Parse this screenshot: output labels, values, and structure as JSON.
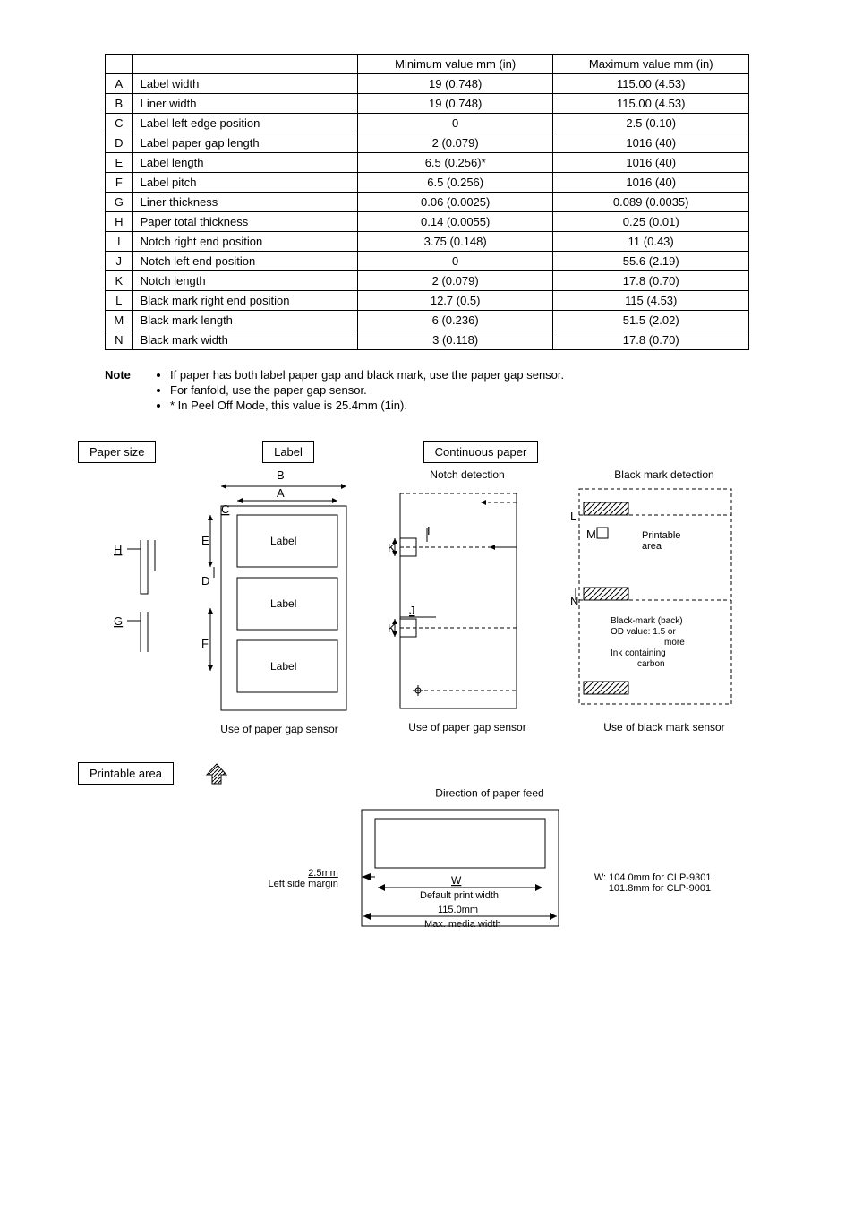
{
  "table": {
    "headers": [
      "",
      "",
      "Minimum value mm (in)",
      "Maximum value mm (in)"
    ],
    "rows": [
      {
        "letter": "A",
        "name": "Label width",
        "min": "19 (0.748)",
        "max": "115.00 (4.53)"
      },
      {
        "letter": "B",
        "name": "Liner width",
        "min": "19 (0.748)",
        "max": "115.00 (4.53)"
      },
      {
        "letter": "C",
        "name": "Label left edge position",
        "min": "0",
        "max": "2.5 (0.10)"
      },
      {
        "letter": "D",
        "name": "Label paper gap length",
        "min": "2 (0.079)",
        "max": "1016 (40)"
      },
      {
        "letter": "E",
        "name": "Label length",
        "min": "6.5 (0.256)*",
        "max": "1016 (40)"
      },
      {
        "letter": "F",
        "name": "Label pitch",
        "min": "6.5 (0.256)",
        "max": "1016 (40)"
      },
      {
        "letter": "G",
        "name": "Liner thickness",
        "min": "0.06 (0.0025)",
        "max": "0.089 (0.0035)"
      },
      {
        "letter": "H",
        "name": "Paper total thickness",
        "min": "0.14 (0.0055)",
        "max": "0.25 (0.01)"
      },
      {
        "letter": "I",
        "name": "Notch right end position",
        "min": "3.75 (0.148)",
        "max": "11 (0.43)"
      },
      {
        "letter": "J",
        "name": "Notch left end position",
        "min": "0",
        "max": "55.6 (2.19)"
      },
      {
        "letter": "K",
        "name": "Notch length",
        "min": "2 (0.079)",
        "max": "17.8 (0.70)"
      },
      {
        "letter": "L",
        "name": "Black mark right end position",
        "min": "12.7 (0.5)",
        "max": "115 (4.53)"
      },
      {
        "letter": "M",
        "name": "Black mark length",
        "min": "6 (0.236)",
        "max": "51.5 (2.02)"
      },
      {
        "letter": "N",
        "name": "Black mark width",
        "min": "3 (0.118)",
        "max": "17.8 (0.70)"
      }
    ]
  },
  "note": {
    "label": "Note",
    "items": [
      "If paper has both label paper gap and black mark, use the paper gap sensor.",
      "For fanfold, use the paper gap sensor.",
      "* In Peel Off Mode, this value is 25.4mm (1in)."
    ]
  },
  "boxes": {
    "paper_size": "Paper size",
    "label": "Label",
    "continuous": "Continuous paper",
    "printable": "Printable area"
  },
  "diag1": {
    "label_text": "Label",
    "letters": {
      "A": "A",
      "B": "B",
      "C": "C",
      "D": "D",
      "E": "E",
      "F": "F",
      "G": "G",
      "H": "H"
    },
    "caption": "Use of paper gap sensor"
  },
  "diag2": {
    "title": "Notch detection",
    "letters": {
      "I": "I",
      "J": "J",
      "K": "K"
    },
    "caption": "Use of paper gap sensor"
  },
  "diag3": {
    "title": "Black mark detection",
    "printable": "Printable area",
    "blackmark": "Black-mark (back) OD value: 1.5 or more Ink containing carbon",
    "letters": {
      "L": "L",
      "M": "M",
      "N": "N"
    },
    "caption": "Use of black mark sensor"
  },
  "feed": {
    "direction": "Direction of paper feed"
  },
  "printable_diag": {
    "margin_val": "2.5mm",
    "margin_label": "Left side margin",
    "W": "W",
    "default_width": "Default print width",
    "max_width_val": "115.0mm",
    "max_width_label": "Max. media width",
    "w_note1": "W: 104.0mm for CLP-9301",
    "w_note2": "101.8mm for CLP-9001"
  },
  "colors": {
    "line": "#000000",
    "hatch": "#808080"
  }
}
